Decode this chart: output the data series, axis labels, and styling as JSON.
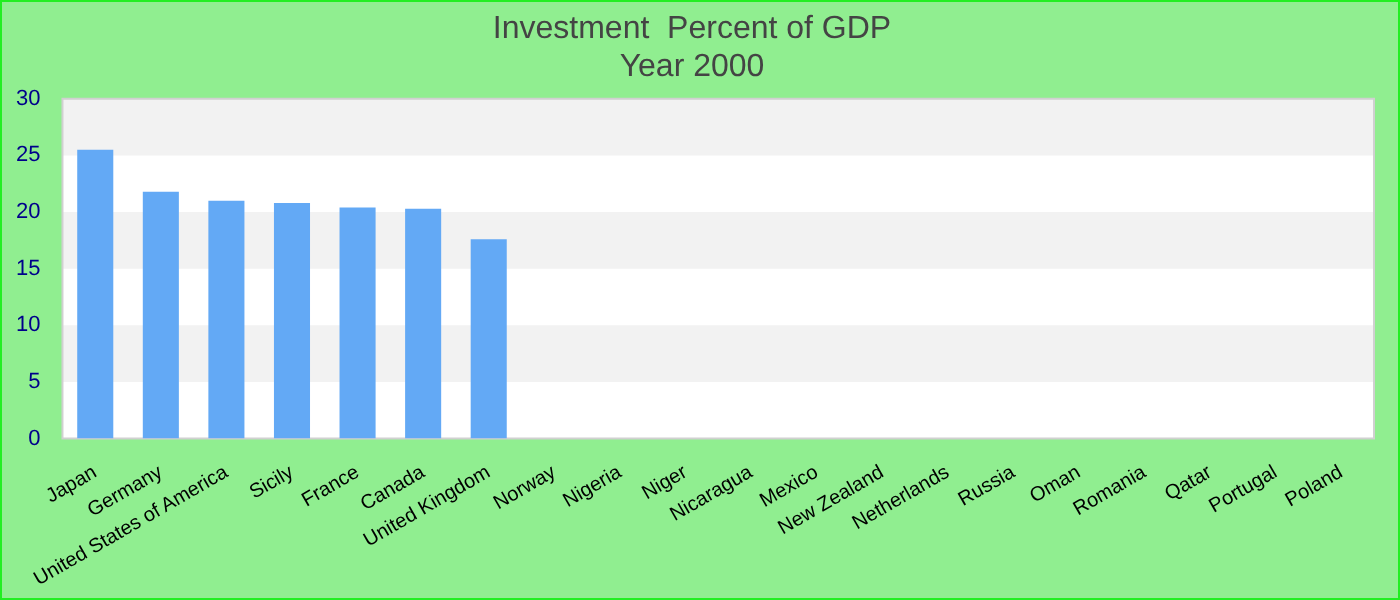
{
  "chart_data": {
    "type": "bar",
    "title": "Investment  Percent of GDP",
    "subtitle": "Year 2000",
    "categories": [
      "Japan",
      "Germany",
      "United States of America",
      "Sicily",
      "France",
      "Canada",
      "United Kingdom",
      "Norway",
      "Nigeria",
      "Niger",
      "Nicaragua",
      "Mexico",
      "New Zealand",
      "Netherlands",
      "Russia",
      "Oman",
      "Romania",
      "Qatar",
      "Portugal",
      "Poland"
    ],
    "values": [
      25.5,
      21.8,
      21.0,
      20.8,
      20.4,
      20.3,
      17.6,
      null,
      null,
      null,
      null,
      null,
      null,
      null,
      null,
      null,
      null,
      null,
      null,
      null
    ],
    "color": "#63a9f5",
    "ylim": [
      0,
      30
    ],
    "yticks": [
      0,
      5,
      10,
      15,
      20,
      25,
      30
    ],
    "bands": [
      {
        "axis": "y",
        "from": 5,
        "to": 10,
        "color": "#f2f2f2"
      },
      {
        "axis": "y",
        "from": 15,
        "to": 20,
        "color": "#f2f2f2"
      },
      {
        "axis": "y",
        "from": 25,
        "to": 30,
        "color": "#f2f2f2"
      }
    ]
  }
}
